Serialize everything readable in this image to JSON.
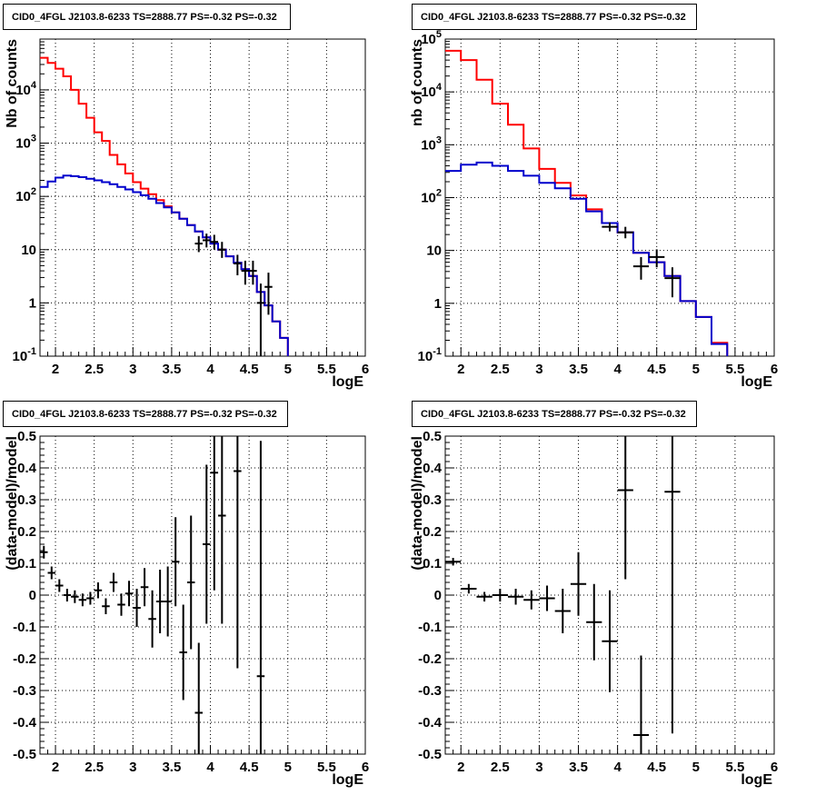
{
  "chart_data": [
    {
      "type": "line",
      "title": "CID0_4FGL J2103.8-6233 TS=2888.77 PS=-0.32 PS=-0.32",
      "xlabel": "logE",
      "ylabel": "Nb of counts",
      "xlim": [
        1.8,
        6.0
      ],
      "ylim": [
        0.1,
        90000
      ],
      "yscale": "log",
      "grid": true,
      "xticks": [
        "2",
        "2.5",
        "3",
        "3.5",
        "4",
        "4.5",
        "5",
        "5.5",
        "6"
      ],
      "yticks": [
        "10^-1",
        "1",
        "10",
        "10^2",
        "10^3",
        "10^4"
      ],
      "bin_edges": [
        1.8,
        1.9,
        2.0,
        2.1,
        2.2,
        2.3,
        2.4,
        2.5,
        2.6,
        2.7,
        2.8,
        2.9,
        3.0,
        3.1,
        3.2,
        3.3,
        3.4,
        3.5,
        3.6,
        3.7,
        3.8,
        3.9,
        4.0,
        4.1,
        4.2,
        4.3,
        4.4,
        4.5,
        4.6,
        4.7,
        4.8,
        4.9,
        5.0,
        5.1,
        5.2,
        5.3,
        5.4,
        5.5,
        5.6,
        5.7,
        5.8,
        5.9,
        6.0
      ],
      "series": [
        {
          "color": "#ff0000",
          "values": [
            40000,
            32000,
            25000,
            18000,
            10000,
            5500,
            3000,
            1600,
            1100,
            600,
            400,
            270,
            185,
            140,
            110,
            85,
            65,
            50,
            38,
            29,
            22,
            17,
            13,
            10,
            7.5,
            5.7,
            4.3,
            3.2,
            1.6,
            0.9,
            0.45,
            0.22,
            0.09,
            0.09,
            0.09,
            0.09,
            0.09,
            0.09,
            0.09,
            0.09,
            0.09,
            0.09
          ]
        },
        {
          "color": "#0000cc",
          "values": [
            150,
            190,
            225,
            245,
            240,
            230,
            215,
            200,
            185,
            170,
            150,
            135,
            120,
            105,
            90,
            75,
            62,
            50,
            38,
            29,
            22,
            17,
            13,
            10,
            7.5,
            5.7,
            4.3,
            3.2,
            1.6,
            0.9,
            0.45,
            0.22,
            0.09,
            0.09,
            0.09,
            0.09,
            0.09,
            0.09,
            0.09,
            0.09,
            0.09,
            0.09
          ]
        }
      ],
      "points": [
        {
          "x": 3.85,
          "y": 13,
          "xerr": 0.05,
          "ylo": 9,
          "yhi": 18
        },
        {
          "x": 3.95,
          "y": 15,
          "xerr": 0.05,
          "ylo": 11,
          "yhi": 20
        },
        {
          "x": 4.05,
          "y": 14,
          "xerr": 0.05,
          "ylo": 10,
          "yhi": 19
        },
        {
          "x": 4.15,
          "y": 10,
          "xerr": 0.05,
          "ylo": 7,
          "yhi": 14
        },
        {
          "x": 4.35,
          "y": 5.5,
          "xerr": 0.05,
          "ylo": 3.3,
          "yhi": 8
        },
        {
          "x": 4.45,
          "y": 4,
          "xerr": 0.05,
          "ylo": 2.2,
          "yhi": 6.2
        },
        {
          "x": 4.55,
          "y": 4,
          "xerr": 0.05,
          "ylo": 2.2,
          "yhi": 6.2
        },
        {
          "x": 4.65,
          "y": 1,
          "xerr": 0.05,
          "ylo": 0.1,
          "yhi": 2.3
        },
        {
          "x": 4.75,
          "y": 2,
          "xerr": 0.05,
          "ylo": 0.6,
          "yhi": 3.7
        }
      ]
    },
    {
      "type": "line",
      "title": "CID0_4FGL J2103.8-6233 TS=2888.77 PS=-0.32 PS=-0.32",
      "xlabel": "logE",
      "ylabel": "nb of counts",
      "xlim": [
        1.8,
        6.0
      ],
      "ylim": [
        0.1,
        100000
      ],
      "yscale": "log",
      "grid": true,
      "xticks": [
        "2",
        "2.5",
        "3",
        "3.5",
        "4",
        "4.5",
        "5",
        "5.5",
        "6"
      ],
      "yticks": [
        "10^-1",
        "1",
        "10",
        "10^2",
        "10^3",
        "10^4",
        "10^5"
      ],
      "bin_edges": [
        1.8,
        2.0,
        2.2,
        2.4,
        2.6,
        2.8,
        3.0,
        3.2,
        3.4,
        3.6,
        3.8,
        4.0,
        4.2,
        4.4,
        4.6,
        4.8,
        5.0,
        5.2,
        5.4,
        5.6,
        5.8,
        6.0
      ],
      "series": [
        {
          "color": "#ff0000",
          "values": [
            60000,
            40000,
            17000,
            6000,
            2400,
            850,
            350,
            190,
            110,
            60,
            33,
            22,
            9,
            6,
            3.3,
            1.1,
            0.55,
            0.18,
            0.09,
            0.09,
            0.09
          ]
        },
        {
          "color": "#0000cc",
          "values": [
            320,
            420,
            460,
            400,
            320,
            260,
            190,
            150,
            95,
            55,
            33,
            22,
            9,
            6,
            3.3,
            1.1,
            0.55,
            0.17,
            0.09,
            0.09,
            0.09
          ]
        }
      ],
      "points": [
        {
          "x": 3.9,
          "y": 28,
          "xerr": 0.1,
          "ylo": 23,
          "yhi": 34
        },
        {
          "x": 4.1,
          "y": 22,
          "xerr": 0.1,
          "ylo": 17,
          "yhi": 28
        },
        {
          "x": 4.3,
          "y": 5,
          "xerr": 0.1,
          "ylo": 2.8,
          "yhi": 7.5
        },
        {
          "x": 4.5,
          "y": 7.5,
          "xerr": 0.1,
          "ylo": 4.8,
          "yhi": 10.5
        },
        {
          "x": 4.7,
          "y": 3,
          "xerr": 0.1,
          "ylo": 1.3,
          "yhi": 4.8
        }
      ]
    },
    {
      "type": "scatter",
      "title": "CID0_4FGL J2103.8-6233 TS=2888.77 PS=-0.32 PS=-0.32",
      "xlabel": "logE",
      "ylabel": "(data-model)/model",
      "xlim": [
        1.8,
        6.0
      ],
      "ylim": [
        -0.5,
        0.5
      ],
      "grid": true,
      "xticks": [
        "2",
        "2.5",
        "3",
        "3.5",
        "4",
        "4.5",
        "5",
        "5.5",
        "6"
      ],
      "yticks": [
        "-0.5",
        "-0.4",
        "-0.3",
        "-0.2",
        "-0.1",
        "0",
        "0.1",
        "0.2",
        "0.3",
        "0.4",
        "0.5"
      ],
      "points": [
        {
          "x": 1.85,
          "y": 0.135,
          "xerr": 0.05,
          "err": 0.02
        },
        {
          "x": 1.95,
          "y": 0.07,
          "xerr": 0.05,
          "err": 0.02
        },
        {
          "x": 2.05,
          "y": 0.03,
          "xerr": 0.05,
          "err": 0.02
        },
        {
          "x": 2.15,
          "y": 0.0,
          "xerr": 0.05,
          "err": 0.02
        },
        {
          "x": 2.25,
          "y": -0.005,
          "xerr": 0.05,
          "err": 0.02
        },
        {
          "x": 2.35,
          "y": -0.015,
          "xerr": 0.05,
          "err": 0.02
        },
        {
          "x": 2.45,
          "y": -0.01,
          "xerr": 0.05,
          "err": 0.02
        },
        {
          "x": 2.55,
          "y": 0.015,
          "xerr": 0.05,
          "err": 0.025
        },
        {
          "x": 2.65,
          "y": -0.035,
          "xerr": 0.05,
          "err": 0.025
        },
        {
          "x": 2.75,
          "y": 0.04,
          "xerr": 0.05,
          "err": 0.03
        },
        {
          "x": 2.85,
          "y": -0.03,
          "xerr": 0.05,
          "err": 0.035
        },
        {
          "x": 2.95,
          "y": 0.005,
          "xerr": 0.05,
          "err": 0.04
        },
        {
          "x": 3.05,
          "y": -0.04,
          "xerr": 0.05,
          "err": 0.06
        },
        {
          "x": 3.15,
          "y": 0.025,
          "xerr": 0.05,
          "err": 0.06
        },
        {
          "x": 3.25,
          "y": -0.075,
          "xerr": 0.05,
          "err": 0.09
        },
        {
          "x": 3.35,
          "y": -0.02,
          "xerr": 0.05,
          "err": 0.1
        },
        {
          "x": 3.45,
          "y": -0.02,
          "xerr": 0.05,
          "err": 0.11
        },
        {
          "x": 3.55,
          "y": 0.105,
          "xerr": 0.05,
          "err": 0.14
        },
        {
          "x": 3.65,
          "y": -0.18,
          "xerr": 0.05,
          "err": 0.15
        },
        {
          "x": 3.75,
          "y": 0.04,
          "xerr": 0.05,
          "err": 0.21
        },
        {
          "x": 3.85,
          "y": -0.37,
          "xerr": 0.05,
          "err": 0.22
        },
        {
          "x": 3.95,
          "y": 0.16,
          "xerr": 0.05,
          "err": 0.25
        },
        {
          "x": 4.05,
          "y": 0.385,
          "xerr": 0.05,
          "err": 0.37
        },
        {
          "x": 4.15,
          "y": 0.25,
          "xerr": 0.05,
          "err": 0.34
        },
        {
          "x": 4.35,
          "y": 0.39,
          "xerr": 0.05,
          "err": 0.62
        },
        {
          "x": 4.65,
          "y": -0.255,
          "xerr": 0.05,
          "err": 0.74
        }
      ]
    },
    {
      "type": "scatter",
      "title": "CID0_4FGL J2103.8-6233 TS=2888.77 PS=-0.32 PS=-0.32",
      "xlabel": "logE",
      "ylabel": "(data-model)/model",
      "xlim": [
        1.8,
        6.0
      ],
      "ylim": [
        -0.5,
        0.5
      ],
      "grid": true,
      "xticks": [
        "2",
        "2.5",
        "3",
        "3.5",
        "4",
        "4.5",
        "5",
        "5.5",
        "6"
      ],
      "yticks": [
        "-0.5",
        "-0.4",
        "-0.3",
        "-0.2",
        "-0.1",
        "0",
        "0.1",
        "0.2",
        "0.3",
        "0.4",
        "0.5"
      ],
      "points": [
        {
          "x": 1.9,
          "y": 0.105,
          "xerr": 0.1,
          "err": 0.012
        },
        {
          "x": 2.1,
          "y": 0.02,
          "xerr": 0.1,
          "err": 0.015
        },
        {
          "x": 2.3,
          "y": -0.005,
          "xerr": 0.1,
          "err": 0.015
        },
        {
          "x": 2.5,
          "y": 0.0,
          "xerr": 0.1,
          "err": 0.02
        },
        {
          "x": 2.7,
          "y": -0.005,
          "xerr": 0.1,
          "err": 0.025
        },
        {
          "x": 2.9,
          "y": -0.015,
          "xerr": 0.1,
          "err": 0.03
        },
        {
          "x": 3.1,
          "y": -0.01,
          "xerr": 0.1,
          "err": 0.04
        },
        {
          "x": 3.3,
          "y": -0.05,
          "xerr": 0.1,
          "err": 0.07
        },
        {
          "x": 3.5,
          "y": 0.035,
          "xerr": 0.1,
          "err": 0.1
        },
        {
          "x": 3.7,
          "y": -0.085,
          "xerr": 0.1,
          "err": 0.12
        },
        {
          "x": 3.9,
          "y": -0.145,
          "xerr": 0.1,
          "err": 0.16
        },
        {
          "x": 4.1,
          "y": 0.33,
          "xerr": 0.1,
          "err": 0.28
        },
        {
          "x": 4.3,
          "y": -0.44,
          "xerr": 0.1,
          "err": 0.25
        },
        {
          "x": 4.7,
          "y": 0.325,
          "xerr": 0.1,
          "err": 0.76
        }
      ]
    }
  ]
}
